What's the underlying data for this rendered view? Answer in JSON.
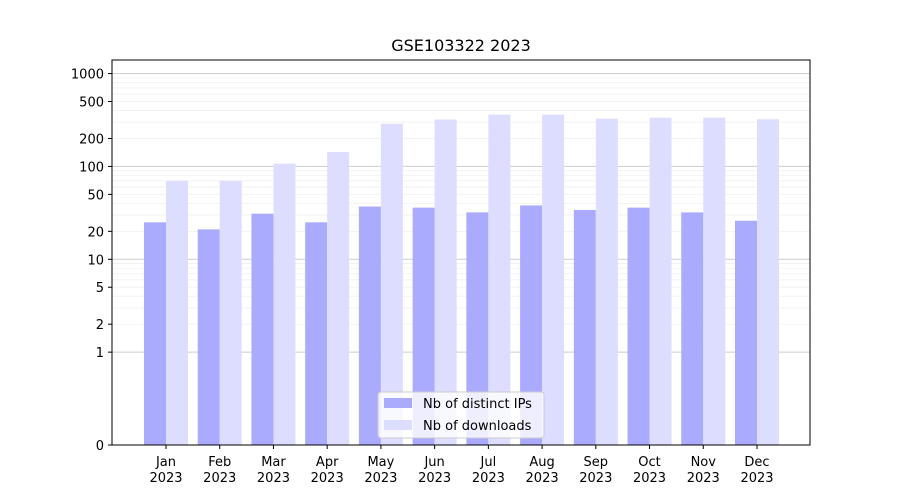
{
  "chart_data": {
    "type": "bar",
    "title": "GSE103322 2023",
    "xlabel": "",
    "ylabel": "",
    "categories": [
      {
        "month": "Jan",
        "year": "2023"
      },
      {
        "month": "Feb",
        "year": "2023"
      },
      {
        "month": "Mar",
        "year": "2023"
      },
      {
        "month": "Apr",
        "year": "2023"
      },
      {
        "month": "May",
        "year": "2023"
      },
      {
        "month": "Jun",
        "year": "2023"
      },
      {
        "month": "Jul",
        "year": "2023"
      },
      {
        "month": "Aug",
        "year": "2023"
      },
      {
        "month": "Sep",
        "year": "2023"
      },
      {
        "month": "Oct",
        "year": "2023"
      },
      {
        "month": "Nov",
        "year": "2023"
      },
      {
        "month": "Dec",
        "year": "2023"
      }
    ],
    "series": [
      {
        "name": "Nb of distinct IPs",
        "color": "#aaaaff",
        "values": [
          25,
          21,
          31,
          25,
          37,
          36,
          32,
          38,
          34,
          36,
          32,
          26
        ]
      },
      {
        "name": "Nb of downloads",
        "color": "#ddddff",
        "values": [
          70,
          70,
          107,
          143,
          288,
          320,
          362,
          362,
          327,
          335,
          335,
          322
        ]
      }
    ],
    "y_scale": "symlog",
    "ylim": [
      0,
      1400
    ],
    "y_ticks": [
      "0",
      "1",
      "2",
      "5",
      "10",
      "20",
      "50",
      "100",
      "200",
      "500",
      "1000"
    ],
    "grid": true,
    "legend_position": "bottom-center"
  }
}
